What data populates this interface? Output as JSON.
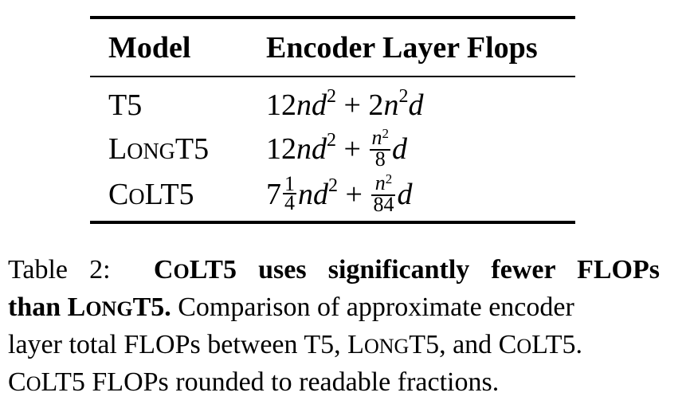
{
  "table": {
    "headers": {
      "model": "Model",
      "flops": "Encoder Layer Flops"
    },
    "rows": [
      {
        "model": "T5",
        "formula": "12nd^2 + 2n^2d"
      },
      {
        "model": "LONGT5",
        "formula": "12nd^2 + n^2/8 d"
      },
      {
        "model": "COLT5",
        "formula": "7 1/4 nd^2 + n^2/84 d"
      }
    ]
  },
  "caption": {
    "label": "Table 2:",
    "bold_part1": "C",
    "bold_part1_sc": "O",
    "bold_part1_rest": "LT5 uses significantly fewer FLOPs",
    "bold_part2": "than L",
    "bold_part2_sc": "ONG",
    "bold_part2_rest": "T5.",
    "text1": "Comparison of approximate encoder",
    "text2_a": "layer total FLOPs between T5, L",
    "text2_sc1": "ONG",
    "text2_b": "T5, and C",
    "text2_sc2": "O",
    "text2_c": "LT5.",
    "text3_a": "C",
    "text3_sc": "O",
    "text3_b": "LT5 FLOPs rounded to readable fractions."
  }
}
